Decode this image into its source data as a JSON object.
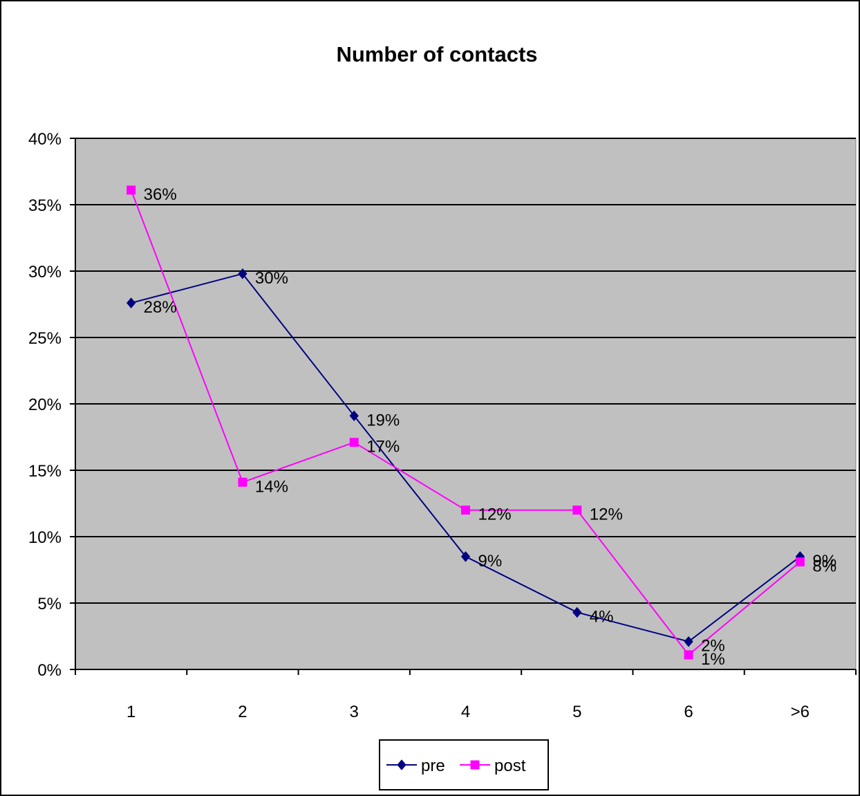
{
  "chart_data": {
    "type": "line",
    "title": "Number of contacts",
    "xlabel": "",
    "ylabel": "",
    "categories": [
      "1",
      "2",
      "3",
      "4",
      "5",
      "6",
      ">6"
    ],
    "ylim": [
      0,
      40
    ],
    "yticks": [
      0,
      5,
      10,
      15,
      20,
      25,
      30,
      35,
      40
    ],
    "ytick_labels": [
      "0%",
      "5%",
      "10%",
      "15%",
      "20%",
      "25%",
      "30%",
      "35%",
      "40%"
    ],
    "grid": true,
    "legend_position": "bottom-center",
    "plot_background": "#C0C0C0",
    "series": [
      {
        "name": "pre",
        "color": "#000080",
        "marker": "diamond",
        "values": [
          27.6,
          29.8,
          19.1,
          8.5,
          4.3,
          2.1,
          8.5
        ],
        "labels": [
          "28%",
          "30%",
          "19%",
          "9%",
          "4%",
          "2%",
          "9%"
        ]
      },
      {
        "name": "post",
        "color": "#FF00FF",
        "marker": "square",
        "values": [
          36.1,
          14.1,
          17.1,
          12.0,
          12.0,
          1.1,
          8.1
        ],
        "labels": [
          "36%",
          "14%",
          "17%",
          "12%",
          "12%",
          "1%",
          "8%"
        ]
      }
    ]
  }
}
